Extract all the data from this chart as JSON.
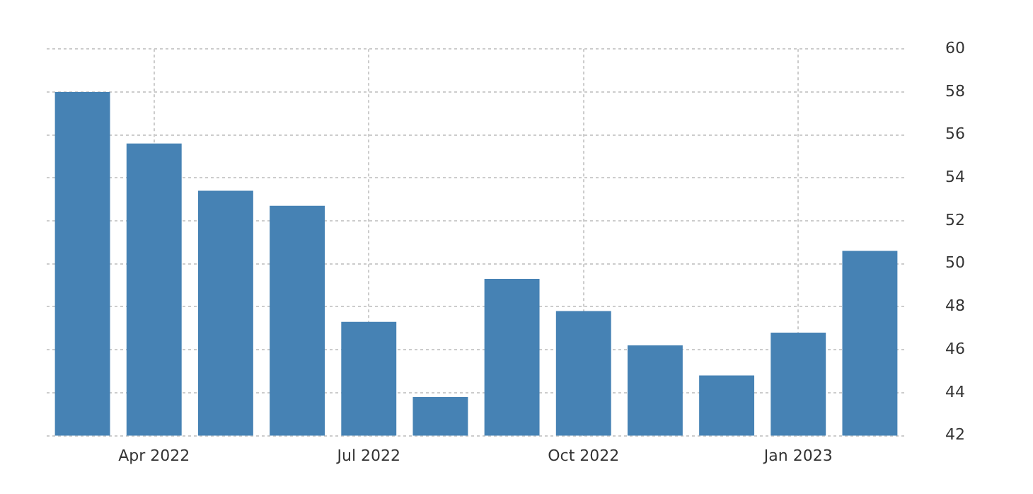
{
  "chart_data": {
    "type": "bar",
    "categories": [
      null,
      "Apr 2022",
      null,
      null,
      "Jul 2022",
      null,
      null,
      "Oct 2022",
      null,
      null,
      "Jan 2023",
      null
    ],
    "values": [
      58.0,
      55.6,
      53.4,
      52.7,
      47.3,
      43.8,
      49.3,
      47.8,
      46.2,
      44.8,
      46.8,
      50.6
    ],
    "color": "#4682b4",
    "ylim": [
      42,
      60
    ],
    "yticks": [
      42,
      44,
      46,
      48,
      50,
      52,
      54,
      56,
      58,
      60
    ],
    "grid": true,
    "legend": false
  }
}
